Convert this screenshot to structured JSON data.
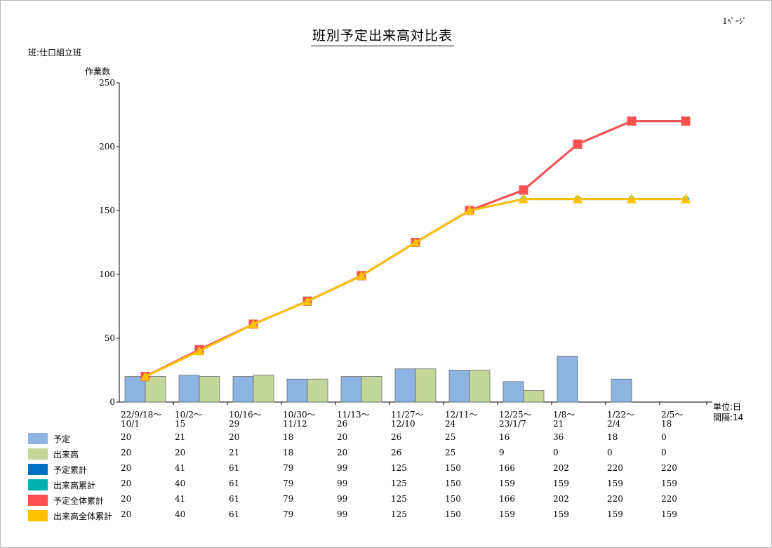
{
  "header": {
    "title": "班別予定出来高対比表",
    "page_number": "1ﾍﾟｰｼﾞ",
    "group_label": "班:仕口組立班",
    "unit_label": "単位:日",
    "interval_label": "間隔:14"
  },
  "chart_data": {
    "type": "bar",
    "ylabel": "作業数",
    "ylim": [
      0,
      250
    ],
    "yticks": [
      0,
      50,
      100,
      150,
      200,
      250
    ],
    "categories": [
      [
        "22/9/18～",
        "10/1"
      ],
      [
        "10/2～",
        "15"
      ],
      [
        "10/16～",
        "29"
      ],
      [
        "10/30～",
        "11/12"
      ],
      [
        "11/13～",
        "26"
      ],
      [
        "11/27～",
        "12/10"
      ],
      [
        "12/11～",
        "24"
      ],
      [
        "12/25～",
        "23/1/7"
      ],
      [
        "1/8～",
        "21"
      ],
      [
        "1/22～",
        "2/4"
      ],
      [
        "2/5～",
        "18"
      ]
    ],
    "series": [
      {
        "name": "予定",
        "kind": "bar",
        "color": "#8db4e2",
        "values": [
          20,
          21,
          20,
          18,
          20,
          26,
          25,
          16,
          36,
          18,
          0
        ]
      },
      {
        "name": "出来高",
        "kind": "bar",
        "color": "#c4d79b",
        "values": [
          20,
          20,
          21,
          18,
          20,
          26,
          25,
          9,
          0,
          0,
          0
        ]
      },
      {
        "name": "予定累計",
        "kind": "line",
        "color": "#0070c0",
        "marker": "square",
        "values": [
          20,
          41,
          61,
          79,
          99,
          125,
          150,
          166,
          202,
          220,
          220
        ]
      },
      {
        "name": "出来高累計",
        "kind": "line",
        "color": "#00b0b0",
        "marker": "diamond",
        "values": [
          20,
          40,
          61,
          79,
          99,
          125,
          150,
          159,
          159,
          159,
          159
        ]
      },
      {
        "name": "予定全体累計",
        "kind": "line",
        "color": "#ff5050",
        "marker": "square",
        "values": [
          20,
          41,
          61,
          79,
          99,
          125,
          150,
          166,
          202,
          220,
          220
        ]
      },
      {
        "name": "出来高全体累計",
        "kind": "line",
        "color": "#ffc000",
        "marker": "triangle",
        "values": [
          20,
          40,
          61,
          79,
          99,
          125,
          150,
          159,
          159,
          159,
          159
        ]
      }
    ]
  }
}
